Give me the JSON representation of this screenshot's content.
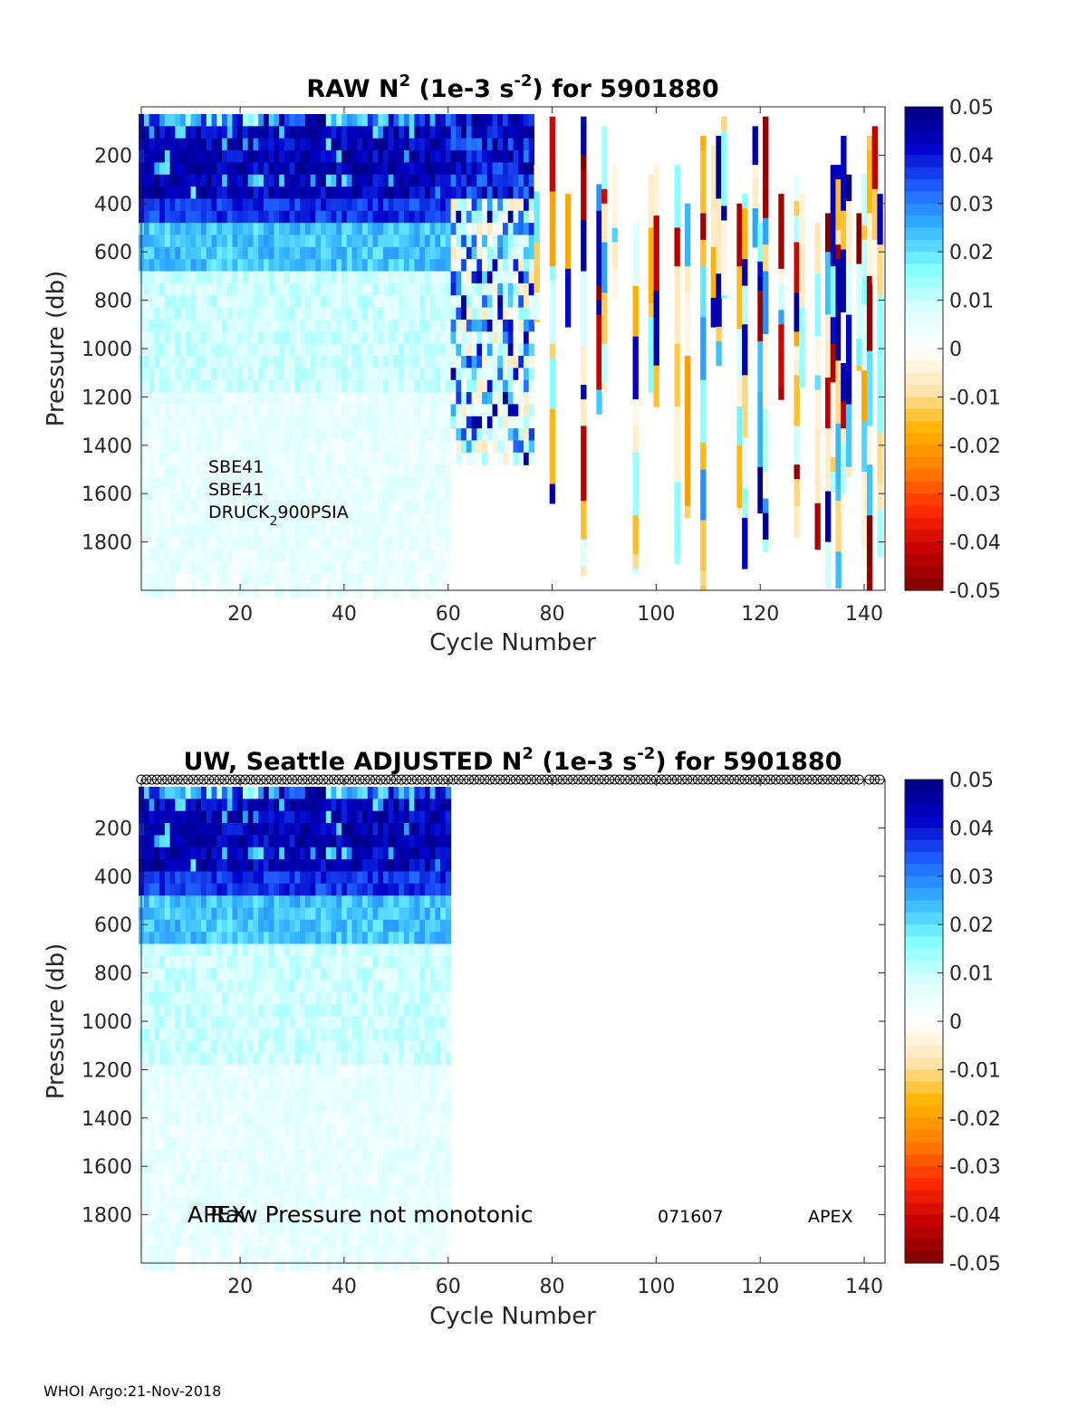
{
  "footer": "WHOI Argo:21-Nov-2018",
  "colorscale": {
    "stops": [
      "#7f0000",
      "#c40000",
      "#ff2a00",
      "#ff7f00",
      "#ffb300",
      "#ffe6b3",
      "#ffffff",
      "#d9ffff",
      "#80ffff",
      "#33b5ff",
      "#1f5fff",
      "#0000c8",
      "#000080"
    ],
    "min": -0.05,
    "max": 0.05,
    "ticks": [
      "0.05",
      "0.04",
      "0.03",
      "0.02",
      "0.01",
      "0",
      "-0.01",
      "-0.02",
      "-0.03",
      "-0.04",
      "-0.05"
    ]
  },
  "chart_data": [
    {
      "type": "heatmap",
      "panel": "top",
      "title": {
        "prefix": "RAW N",
        "sup1": "2",
        "mid": " (1e-3 s",
        "sup2": "-2",
        "suffix": ") for 5901880"
      },
      "xlabel": "Cycle Number",
      "ylabel": "Pressure (db)",
      "xlim": [
        1,
        144
      ],
      "ylim": [
        0,
        2000
      ],
      "xticks": [
        "20",
        "40",
        "60",
        "80",
        "100",
        "120",
        "140"
      ],
      "yticks": [
        "200",
        "400",
        "600",
        "800",
        "1000",
        "1200",
        "1400",
        "1600",
        "1800"
      ],
      "annotations": [
        "SBE41",
        "SBE41",
        "DRUCK",
        "2",
        "900PSIA"
      ],
      "profile_groups": [
        {
          "cycles": [
            1,
            60
          ],
          "pmax": 2000,
          "kind": "regular",
          "note": "cycles 1-60: ~0.04-0.05 near surface to 400 db, ~0.02-0.03 at 400-650 db, ~0.005-0.01 below"
        },
        {
          "cycles": [
            61,
            76
          ],
          "pmax": 1450,
          "kind": "noisy",
          "note": "cycles 61-76 truncated near 1450 db, noisy mixed values"
        },
        {
          "cycles": [
            77,
            143
          ],
          "pmax": 2000,
          "kind": "sparse",
          "note": "cycles 77-143 sparse profiles with extreme values (-0.05 to 0.05)"
        }
      ]
    },
    {
      "type": "heatmap",
      "panel": "bottom",
      "title": {
        "prefix": "UW, Seattle  ADJUSTED N",
        "sup1": "2",
        "mid": " (1e-3 s",
        "sup2": "-2",
        "suffix": ") for 5901880"
      },
      "xlabel": "Cycle Number",
      "ylabel": "Pressure (db)",
      "xlim": [
        1,
        144
      ],
      "ylim": [
        0,
        2000
      ],
      "xticks": [
        "20",
        "40",
        "60",
        "80",
        "100",
        "120",
        "140"
      ],
      "yticks": [
        "200",
        "400",
        "600",
        "800",
        "1000",
        "1200",
        "1400",
        "1600",
        "1800"
      ],
      "annotations": [
        "APEX",
        "Raw Pressure not monotonic",
        "071607",
        "APEX"
      ],
      "marker_cycles": "1-143 (circle markers along top edge, one per cycle with a few gaps)",
      "profile_groups": [
        {
          "cycles": [
            1,
            60
          ],
          "pmax": 2000,
          "kind": "regular"
        }
      ]
    }
  ]
}
